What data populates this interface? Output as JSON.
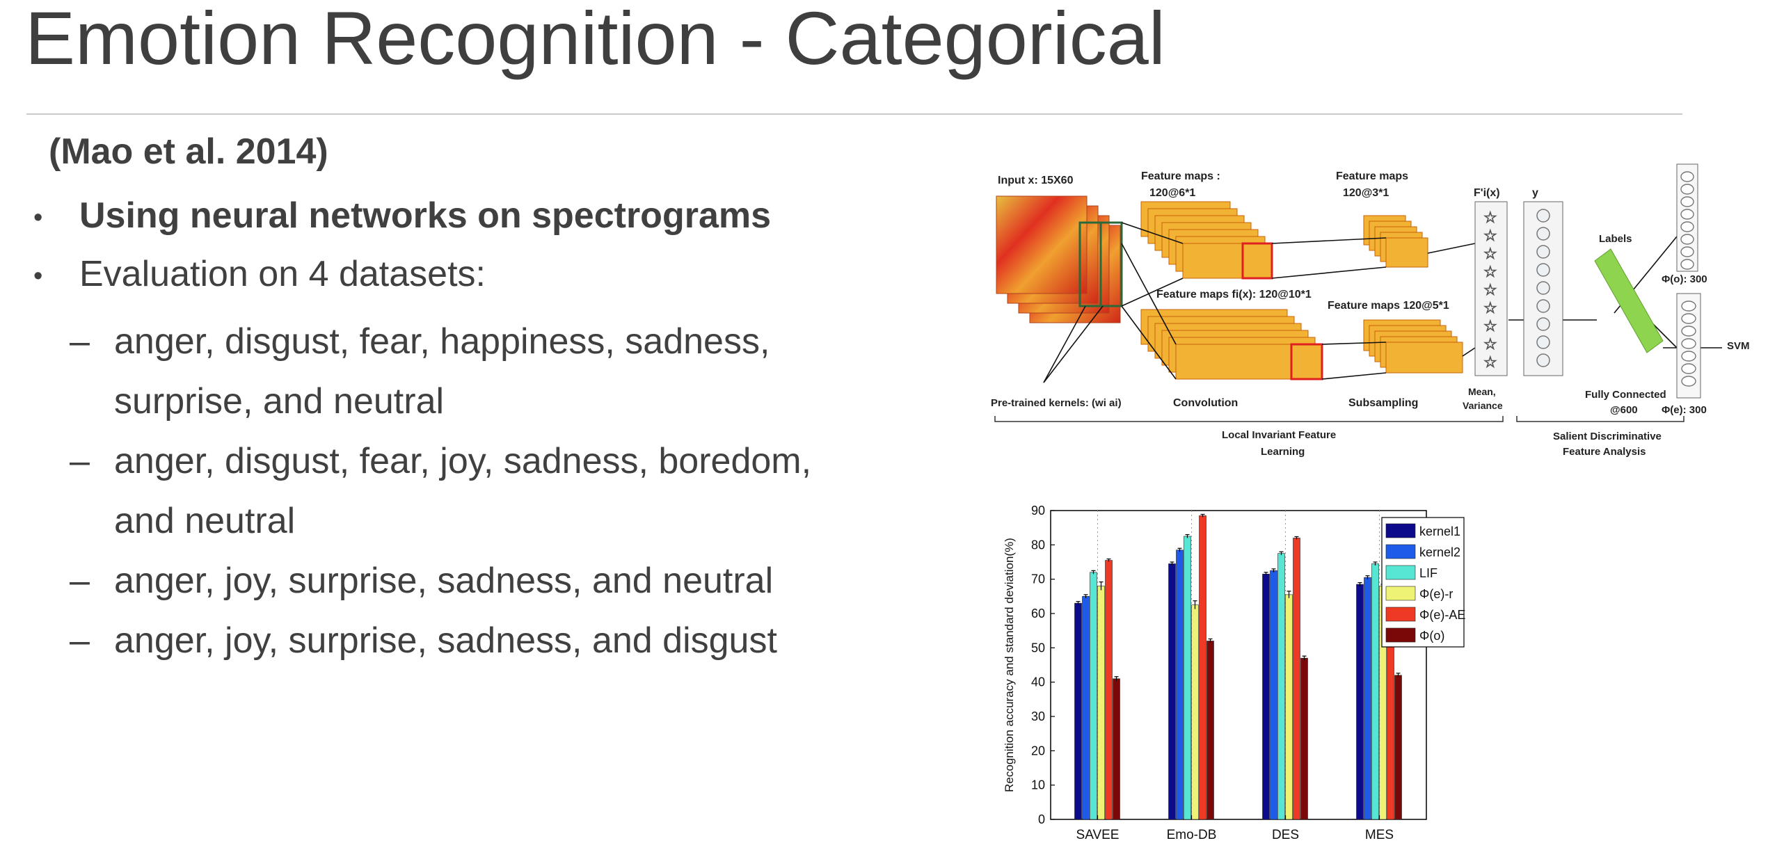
{
  "slide": {
    "title": "Emotion Recognition - Categorical",
    "citation": "(Mao et al. 2014)",
    "bullets": [
      "Using neural networks on spectrograms",
      "Evaluation on 4 datasets:"
    ],
    "subbullets": [
      [
        "anger, disgust, fear, happiness, sadness,",
        "surprise, and neutral"
      ],
      [
        "anger, disgust, fear, joy, sadness, boredom,",
        "and neutral"
      ],
      [
        "anger, joy, surprise, sadness, and neutral"
      ],
      [
        "anger, joy, surprise, sadness, and disgust"
      ]
    ],
    "bullet_glyph": "•",
    "dash_glyph": "–"
  },
  "diagram": {
    "input": "Input x: 15X60",
    "fmaps1_a": "Feature maps :",
    "fmaps1_b": "120@6*1",
    "fmaps2_a": "Feature maps",
    "fmaps2_b": "120@3*1",
    "fmaps3": "Feature maps fi(x): 120@10*1",
    "fmaps4": "Feature maps 120@5*1",
    "fvec": "F'i(x)",
    "y": "y",
    "labels": "Labels",
    "phi_o": "Φ(o): 300",
    "phi_e": "Φ(e): 300",
    "svm": "SVM",
    "pretrained": "Pre-trained kernels: (wi ai)",
    "convolution": "Convolution",
    "subsampling": "Subsampling",
    "mean_a": "Mean,",
    "mean_b": "Variance",
    "fc_a": "Fully Connected",
    "fc_b": "@600",
    "lifl_a": "Local Invariant Feature",
    "lifl_b": "Learning",
    "sdfa_a": "Salient Discriminative",
    "sdfa_b": "Feature Analysis",
    "colors": {
      "map_fill": "#f2b233",
      "map_edge": "#c8620a",
      "fc_bar": "#8ed44e",
      "highlight": "#e02020"
    }
  },
  "chart_data": {
    "type": "bar",
    "ylabel": "Recognition accuracy and standard deviation(%)",
    "ylim": [
      0,
      90
    ],
    "yticks": [
      "0",
      "10",
      "20",
      "30",
      "40",
      "50",
      "60",
      "70",
      "80",
      "90"
    ],
    "categories": [
      "SAVEE",
      "Emo-DB",
      "DES",
      "MES"
    ],
    "series": [
      {
        "name": "kernel1",
        "color": "#0b0b8c",
        "values": [
          63,
          74.5,
          71.5,
          68.5
        ],
        "err": [
          0.5,
          0.5,
          0.5,
          0.5
        ]
      },
      {
        "name": "kernel2",
        "color": "#1d5be8",
        "values": [
          65,
          78.5,
          72.5,
          70.5
        ],
        "err": [
          0.5,
          0.5,
          0.5,
          0.5
        ]
      },
      {
        "name": "LIF",
        "color": "#57e6d4",
        "values": [
          72,
          82.5,
          77.5,
          74.5
        ],
        "err": [
          0.5,
          0.5,
          0.5,
          0.5
        ]
      },
      {
        "name": "Φ(e)-r",
        "color": "#eef275",
        "values": [
          68,
          62.5,
          65.5,
          68
        ],
        "err": [
          1.2,
          1.2,
          1,
          0.5
        ]
      },
      {
        "name": "Φ(e)-AE",
        "color": "#ee3a24",
        "values": [
          75.5,
          88.5,
          82,
          79.5
        ],
        "err": [
          0.4,
          0.4,
          0.4,
          0.4
        ]
      },
      {
        "name": "Φ(o)",
        "color": "#7a0808",
        "values": [
          41,
          52,
          47,
          42
        ],
        "err": [
          0.6,
          0.6,
          0.6,
          0.6
        ]
      }
    ],
    "grid": "dotted vertical",
    "legend": "top-right"
  }
}
